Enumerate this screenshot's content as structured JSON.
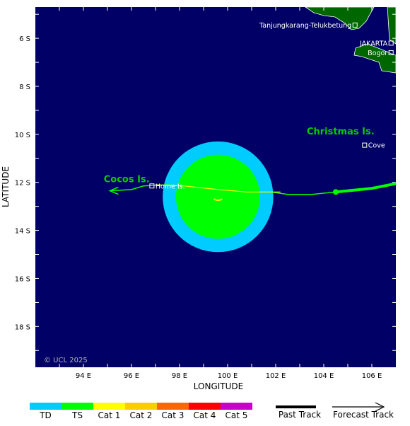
{
  "map": {
    "axes": {
      "xlabel": "LONGITUDE",
      "ylabel": "LATITUDE",
      "lon_range": [
        92,
        107
      ],
      "lat_range": [
        -19.7,
        -4.7
      ],
      "lon_ticks": [
        {
          "value": 94,
          "label": "94 E"
        },
        {
          "value": 96,
          "label": "96 E"
        },
        {
          "value": 98,
          "label": "98 E"
        },
        {
          "value": 100,
          "label": "100 E"
        },
        {
          "value": 102,
          "label": "102 E"
        },
        {
          "value": 104,
          "label": "104 E"
        },
        {
          "value": 106,
          "label": "106 E"
        }
      ],
      "lat_ticks": [
        {
          "value": -6,
          "label": "6 S"
        },
        {
          "value": -8,
          "label": "8 S"
        },
        {
          "value": -10,
          "label": "10 S"
        },
        {
          "value": -12,
          "label": "12 S"
        },
        {
          "value": -14,
          "label": "14 S"
        },
        {
          "value": -16,
          "label": "16 S"
        },
        {
          "value": -18,
          "label": "18 S"
        }
      ]
    },
    "copyright": "© UCL 2025",
    "regions": [
      {
        "name": "Christmas Is.",
        "lon": 104.7,
        "lat": -10.0
      },
      {
        "name": "Cocos Is.",
        "lon": 95.8,
        "lat": -12.0
      }
    ],
    "places": [
      {
        "name": "Tanjungkarang-Telukbetung",
        "lon": 105.3,
        "lat": -5.45
      },
      {
        "name": "JAKARTA",
        "lon": 106.8,
        "lat": -6.2
      },
      {
        "name": "Bogor",
        "lon": 106.8,
        "lat": -6.6
      },
      {
        "name": "Cove",
        "lon": 105.7,
        "lat": -10.45
      },
      {
        "name": "Home Is.",
        "lon": 96.85,
        "lat": -12.15
      }
    ],
    "storm": {
      "center": {
        "lon": 99.6,
        "lat": -12.6
      },
      "ts_radius_deg": 1.75,
      "td_radius_deg": 2.3,
      "past_track": [
        {
          "lon": 107.0,
          "lat": -12.05
        },
        {
          "lon": 106.0,
          "lat": -12.25
        },
        {
          "lon": 105.0,
          "lat": -12.35
        },
        {
          "lon": 104.5,
          "lat": -12.4
        }
      ],
      "forecast_track": [
        {
          "lon": 104.5,
          "lat": -12.4
        },
        {
          "lon": 103.5,
          "lat": -12.5
        },
        {
          "lon": 102.5,
          "lat": -12.5
        },
        {
          "lon": 101.8,
          "lat": -12.4
        },
        {
          "lon": 100.8,
          "lat": -12.4
        },
        {
          "lon": 99.8,
          "lat": -12.3
        },
        {
          "lon": 98.5,
          "lat": -12.2
        },
        {
          "lon": 97.5,
          "lat": -12.1
        },
        {
          "lon": 96.5,
          "lat": -12.15
        },
        {
          "lon": 96.0,
          "lat": -12.3
        },
        {
          "lon": 95.1,
          "lat": -12.35
        }
      ],
      "yellow_track": [
        {
          "lon": 102.2,
          "lat": -12.4
        },
        {
          "lon": 100.8,
          "lat": -12.4
        },
        {
          "lon": 99.6,
          "lat": -12.3
        },
        {
          "lon": 98.2,
          "lat": -12.15
        },
        {
          "lon": 97.0,
          "lat": -12.1
        }
      ],
      "current_position": {
        "lon": 104.5,
        "lat": -12.4
      }
    }
  },
  "legend": {
    "categories": [
      {
        "label": "TD",
        "color": "#00ccff"
      },
      {
        "label": "TS",
        "color": "#00ff00"
      },
      {
        "label": "Cat 1",
        "color": "#ffff00"
      },
      {
        "label": "Cat 2",
        "color": "#ffcc00"
      },
      {
        "label": "Cat 3",
        "color": "#ff6600"
      },
      {
        "label": "Cat 4",
        "color": "#ff0000"
      },
      {
        "label": "Cat 5",
        "color": "#cc00cc"
      }
    ],
    "past_track_label": "Past Track",
    "forecast_track_label": "Forecast Track"
  },
  "colors": {
    "ocean": "#000066",
    "land": "#006600",
    "land_border": "#ffffff",
    "grid": "#ffffff",
    "region_label": "#00cc00"
  }
}
